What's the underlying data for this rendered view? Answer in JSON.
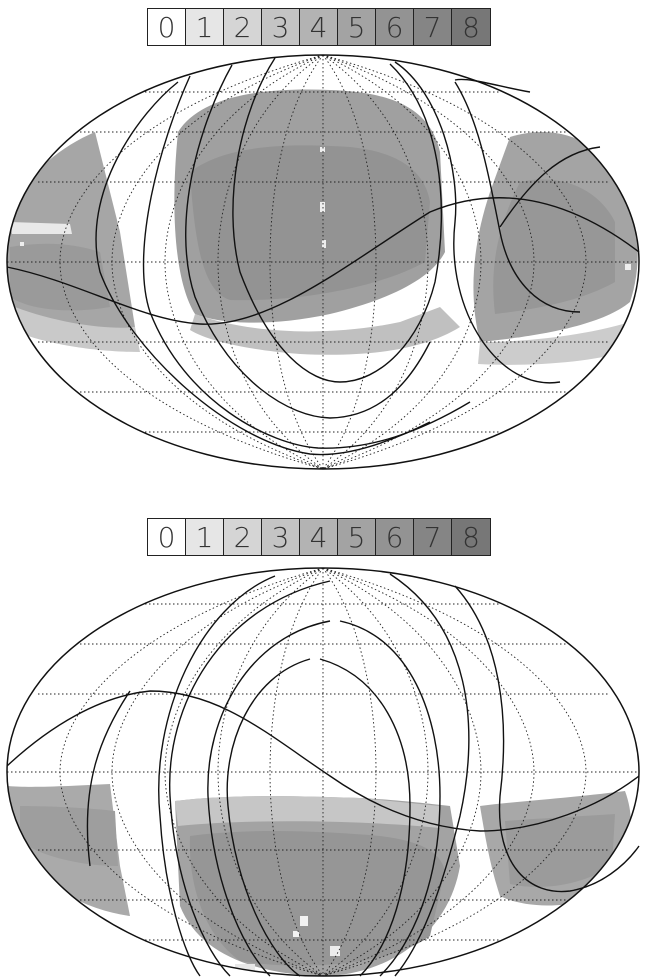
{
  "legend_top": [
    "0",
    "1",
    "2",
    "3",
    "4",
    "5",
    "6",
    "7",
    "8"
  ],
  "legend_bottom": [
    "0",
    "1",
    "2",
    "3",
    "4",
    "5",
    "6",
    "7",
    "8"
  ],
  "colors": {
    "level_0": "#ffffff",
    "level_1": "#e6e6e6",
    "level_2": "#d5d5d5",
    "level_3": "#c4c4c4",
    "level_4": "#b3b3b3",
    "level_5": "#a3a3a3",
    "level_6": "#939393",
    "level_7": "#858585",
    "level_8": "#777777",
    "outline": "#111111",
    "graticule": "#222222"
  },
  "projection": "Mollweide"
}
